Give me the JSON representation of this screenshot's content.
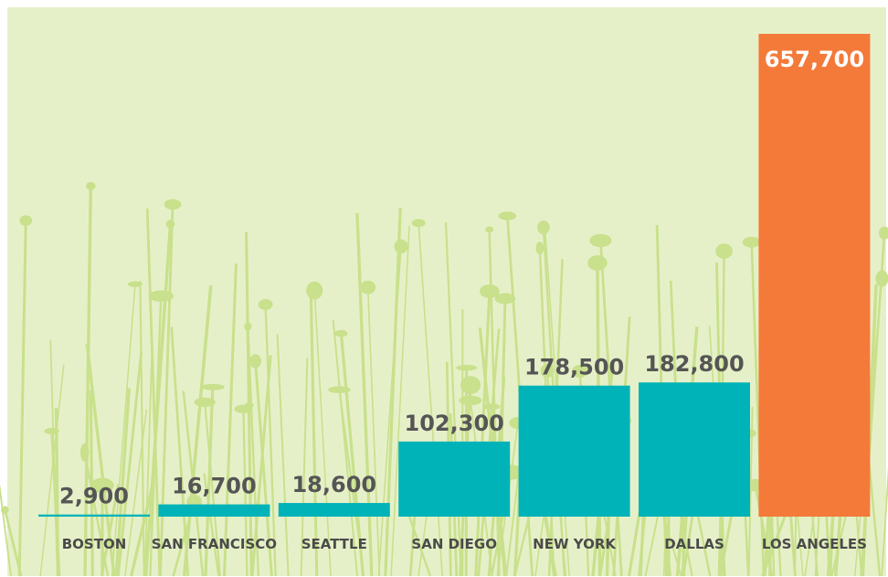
{
  "chart_data": {
    "type": "bar",
    "categories": [
      "BOSTON",
      "SAN FRANCISCO",
      "SEATTLE",
      "SAN DIEGO",
      "NEW YORK",
      "DALLAS",
      "LOS ANGELES"
    ],
    "values": [
      2900,
      16700,
      18600,
      102300,
      178500,
      182800,
      657700
    ],
    "value_labels": [
      "2,900",
      "16,700",
      "18,600",
      "102,300",
      "178,500",
      "182,800",
      "657,700"
    ],
    "colors": [
      "#00b3b8",
      "#00b3b8",
      "#00b3b8",
      "#00b3b8",
      "#00b3b8",
      "#00b3b8",
      "#f47a3a"
    ]
  }
}
